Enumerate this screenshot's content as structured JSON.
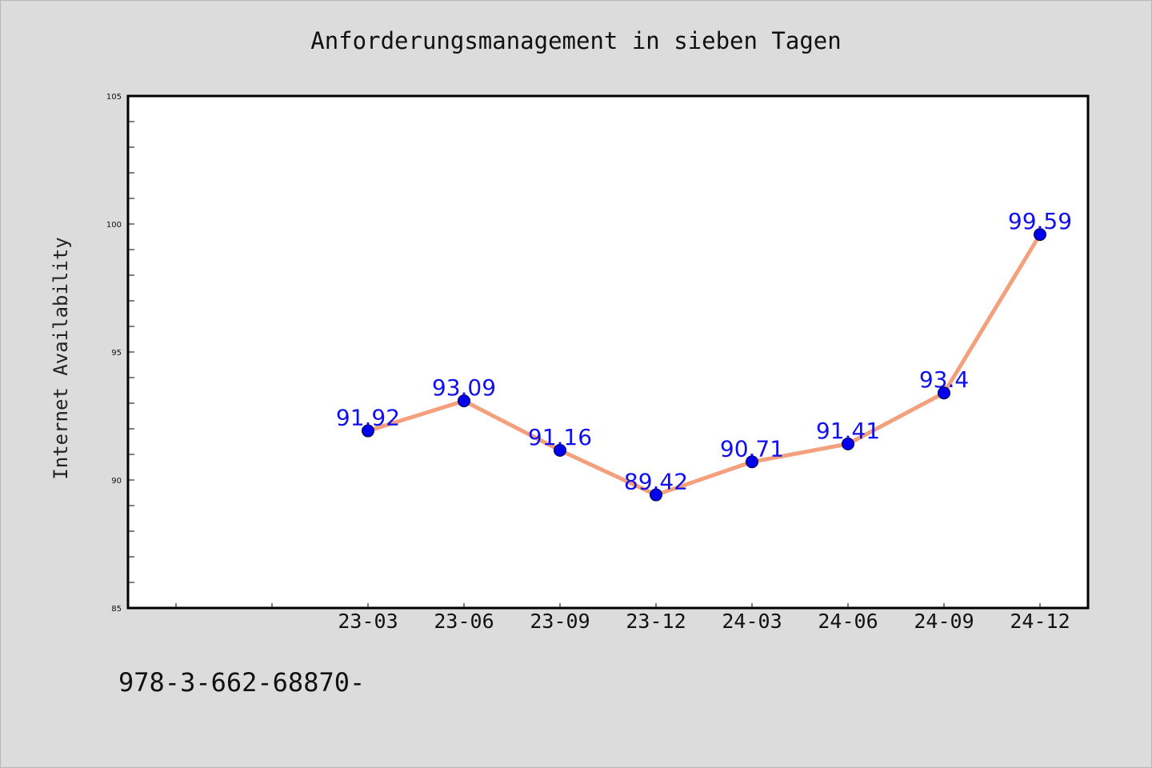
{
  "chart_data": {
    "type": "line",
    "title": "Anforderungsmanagement in sieben Tagen",
    "xlabel": "",
    "ylabel": "Internet Availability",
    "categories": [
      "23-03",
      "23-06",
      "23-09",
      "23-12",
      "24-03",
      "24-06",
      "24-09",
      "24-12"
    ],
    "series": [
      {
        "values": [
          91.92,
          93.09,
          91.16,
          89.42,
          90.71,
          91.41,
          93.4,
          99.59
        ],
        "data_labels": [
          "91.92",
          "93.09",
          "91.16",
          "89.42",
          "90.71",
          "91.41",
          "93.4",
          "99.59"
        ]
      }
    ],
    "ylim": [
      85,
      105
    ],
    "yticks": [
      "85",
      "90",
      "95",
      "100",
      "105"
    ],
    "grid": false,
    "legend": "none",
    "colors": {
      "line": "#f4a07c",
      "marker": "#0000ee",
      "data_label": "#1010ee",
      "background": "#dcdcdc",
      "plot_area": "#ffffff"
    }
  },
  "footnote": "978-3-662-68870-"
}
